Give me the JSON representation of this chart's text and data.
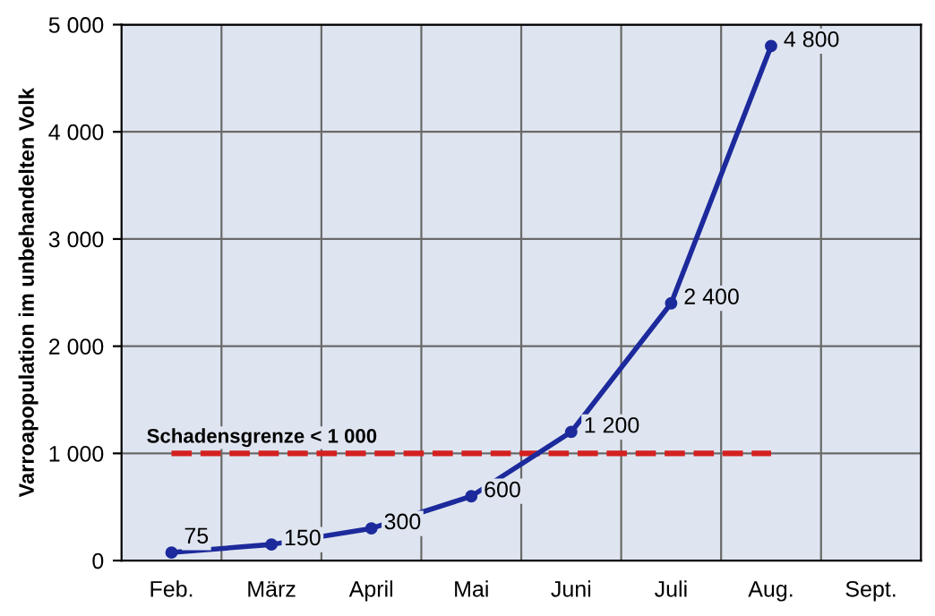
{
  "chart_data": {
    "type": "line",
    "ylabel": "Varroapopulation im unbehandelten Volk",
    "categories": [
      "Feb.",
      "März",
      "April",
      "Mai",
      "Juni",
      "Juli",
      "Aug.",
      "Sept."
    ],
    "series": [
      {
        "color": "#1c2a9c",
        "values": [
          75,
          150,
          300,
          600,
          1200,
          2400,
          4800,
          null
        ],
        "value_labels": [
          "75",
          "150",
          "300",
          "600",
          "1 200",
          "2 400",
          "4 800",
          null
        ]
      }
    ],
    "ylim": [
      0,
      5000
    ],
    "yticks": [
      0,
      {
        "value": 1000,
        "label": "1 000"
      },
      {
        "value": 2000,
        "label": "2 000"
      },
      {
        "value": 3000,
        "label": "3 000"
      },
      {
        "value": 4000,
        "label": "4 000"
      },
      {
        "value": 5000,
        "label": "5 000"
      }
    ],
    "ref_lines": [
      {
        "axis": "y",
        "value": 1000,
        "label": "Schadensgrenze < 1 000",
        "color": "#d42020",
        "line_style": "dashed"
      }
    ],
    "grid": true,
    "marker": "circle",
    "line_style": "solid"
  }
}
